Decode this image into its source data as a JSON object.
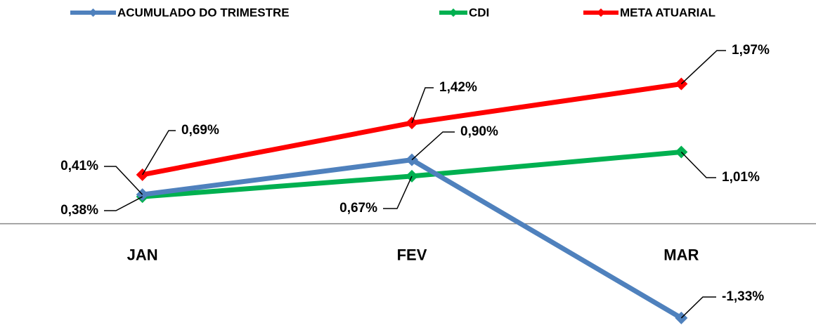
{
  "chart_data": {
    "type": "line",
    "categories": [
      "JAN",
      "FEV",
      "MAR"
    ],
    "series": [
      {
        "name": "ACUMULADO DO TRIMESTRE",
        "color": "#4f81bd",
        "values": [
          0.41,
          0.9,
          -1.33
        ],
        "value_labels": [
          "0,41%",
          "0,90%",
          "-1,33%"
        ]
      },
      {
        "name": "CDI",
        "color": "#00b050",
        "values": [
          0.38,
          0.67,
          1.01
        ],
        "value_labels": [
          "0,38%",
          "0,67%",
          "1,01%"
        ]
      },
      {
        "name": "META ATUARIAL",
        "color": "#ff0000",
        "values": [
          0.69,
          1.42,
          1.97
        ],
        "value_labels": [
          "0,69%",
          "1,42%",
          "1,97%"
        ]
      }
    ],
    "ylim": [
      -1.4,
      2.5
    ],
    "legend": "top"
  }
}
